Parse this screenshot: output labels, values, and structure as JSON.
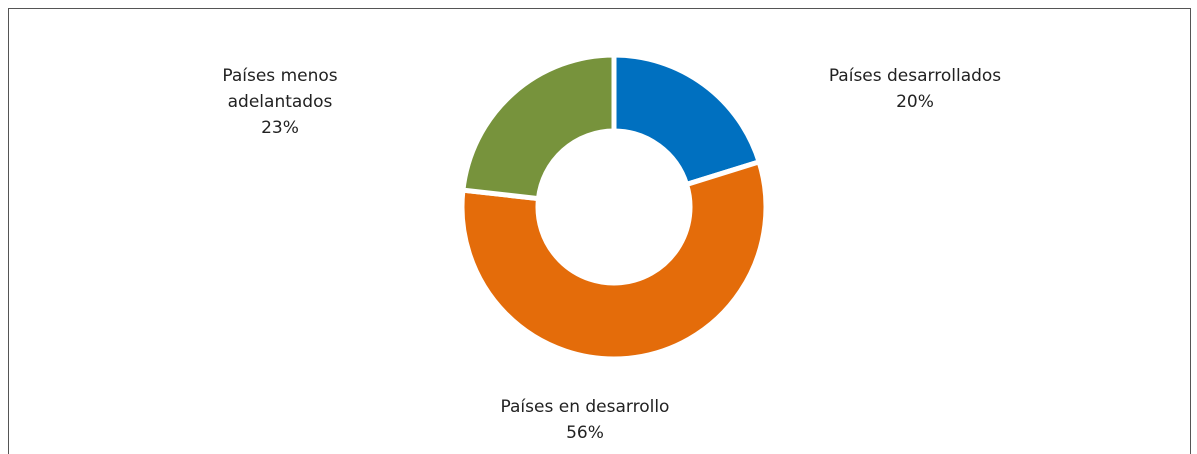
{
  "chart_data": {
    "type": "donut",
    "categories": [
      "Países desarrollados",
      "Países en desarrollo",
      "Países menos adelantados"
    ],
    "values": [
      20,
      56,
      23
    ],
    "value_labels": [
      "20%",
      "56%",
      "23%"
    ],
    "colors": [
      "#0070c0",
      "#e46c0a",
      "#77933c"
    ]
  }
}
